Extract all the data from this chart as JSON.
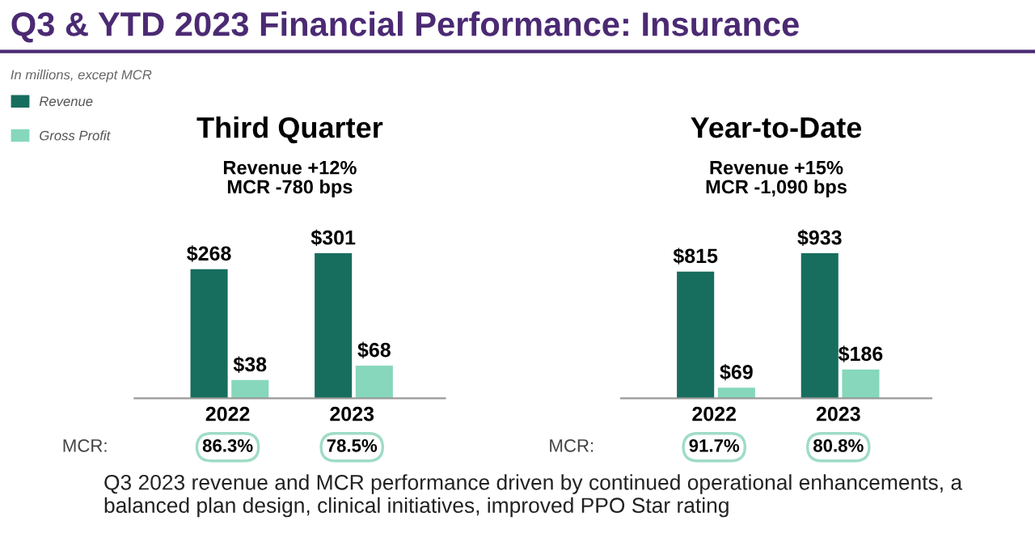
{
  "chart_data": [
    {
      "type": "bar",
      "title": "Third Quarter",
      "subtitle": "Revenue +12%\nMCR -780 bps",
      "categories": [
        "2022",
        "2023"
      ],
      "legend": "top left",
      "series": [
        {
          "name": "Revenue",
          "color": "#176e5e",
          "values": [
            268,
            301
          ],
          "value_labels": [
            "$268",
            "$301"
          ]
        },
        {
          "name": "Gross Profit",
          "color": "#86d7bb",
          "values": [
            38,
            68
          ],
          "value_labels": [
            "$38",
            "$68"
          ]
        }
      ],
      "annotations": [
        "Q3 & YTD 2023 Financial Performance: Insurance",
        "In millions, except MCR",
        "Q3 2023 revenue and MCR performance driven by continued operational enhancements, a balanced plan design, clinical initiatives, improved PPO Star rating",
        "MCR:",
        "86.3%",
        "78.5%"
      ]
    },
    {
      "type": "bar",
      "title": "Year-to-Date",
      "subtitle": "Revenue +15%\nMCR -1,090 bps",
      "categories": [
        "2022",
        "2023"
      ],
      "series": [
        {
          "color": "#176e5e",
          "values": [
            815,
            933
          ],
          "value_labels": [
            "$815",
            "$933"
          ]
        },
        {
          "color": "#86d7bb",
          "values": [
            69,
            186
          ],
          "value_labels": [
            "$69",
            "$186"
          ]
        }
      ],
      "annotations": [
        "MCR:",
        "91.7%",
        "80.8%"
      ]
    }
  ]
}
